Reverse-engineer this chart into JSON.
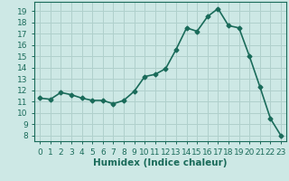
{
  "x": [
    0,
    1,
    2,
    3,
    4,
    5,
    6,
    7,
    8,
    9,
    10,
    11,
    12,
    13,
    14,
    15,
    16,
    17,
    18,
    19,
    20,
    21,
    22,
    23
  ],
  "y": [
    11.3,
    11.2,
    11.8,
    11.6,
    11.3,
    11.1,
    11.1,
    10.8,
    11.1,
    11.9,
    13.2,
    13.4,
    13.9,
    15.6,
    17.5,
    17.2,
    18.5,
    19.2,
    17.7,
    17.5,
    15.0,
    12.3,
    9.5,
    8.0
  ],
  "line_color": "#1a6b5a",
  "bg_color": "#cde8e5",
  "grid_color": "#b0d0cc",
  "xlabel": "Humidex (Indice chaleur)",
  "ylabel_ticks": [
    8,
    9,
    10,
    11,
    12,
    13,
    14,
    15,
    16,
    17,
    18,
    19
  ],
  "ylim": [
    7.5,
    19.8
  ],
  "xlim": [
    -0.5,
    23.5
  ],
  "xtick_labels": [
    "0",
    "1",
    "2",
    "3",
    "4",
    "5",
    "6",
    "7",
    "8",
    "9",
    "10",
    "11",
    "12",
    "13",
    "14",
    "15",
    "16",
    "17",
    "18",
    "19",
    "20",
    "21",
    "22",
    "23"
  ],
  "marker": "D",
  "marker_size": 2.5,
  "line_width": 1.2,
  "xlabel_fontsize": 7.5,
  "tick_fontsize": 6.5
}
